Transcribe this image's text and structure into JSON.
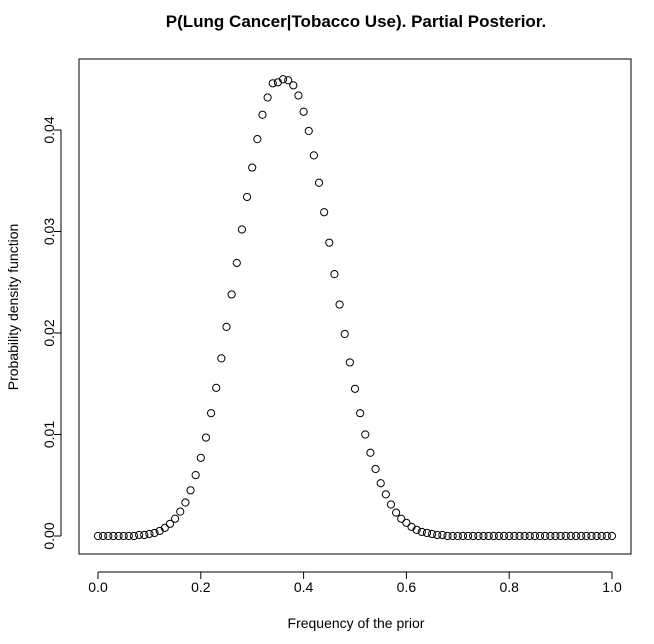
{
  "chart_data": {
    "type": "scatter",
    "title": "P(Lung Cancer|Tobacco Use). Partial Posterior.",
    "xlabel": "Frequency of the prior",
    "ylabel": "Probability density function",
    "xlim": [
      0.0,
      1.0
    ],
    "ylim": [
      0.0,
      0.045
    ],
    "x_ticks": [
      "0.0",
      "0.2",
      "0.4",
      "0.6",
      "0.8",
      "1.0"
    ],
    "y_ticks": [
      "0.00",
      "0.01",
      "0.02",
      "0.03",
      "0.04"
    ],
    "grid": false,
    "legend": "none",
    "marker": "open-circle",
    "series": [
      {
        "x": [
          0.0,
          0.01,
          0.02,
          0.03,
          0.04,
          0.05,
          0.06,
          0.07,
          0.08,
          0.09,
          0.1,
          0.11,
          0.12,
          0.13,
          0.14,
          0.15,
          0.16,
          0.17,
          0.18,
          0.19,
          0.2,
          0.21,
          0.22,
          0.23,
          0.24,
          0.25,
          0.26,
          0.27,
          0.28,
          0.29,
          0.3,
          0.31,
          0.32,
          0.33,
          0.34,
          0.35,
          0.36,
          0.37,
          0.38,
          0.39,
          0.4,
          0.41,
          0.42,
          0.43,
          0.44,
          0.45,
          0.46,
          0.47,
          0.48,
          0.49,
          0.5,
          0.51,
          0.52,
          0.53,
          0.54,
          0.55,
          0.56,
          0.57,
          0.58,
          0.59,
          0.6,
          0.61,
          0.62,
          0.63,
          0.64,
          0.65,
          0.66,
          0.67,
          0.68,
          0.69,
          0.7,
          0.71,
          0.72,
          0.73,
          0.74,
          0.75,
          0.76,
          0.77,
          0.78,
          0.79,
          0.8,
          0.81,
          0.82,
          0.83,
          0.84,
          0.85,
          0.86,
          0.87,
          0.88,
          0.89,
          0.9,
          0.91,
          0.92,
          0.93,
          0.94,
          0.95,
          0.96,
          0.97,
          0.98,
          0.99,
          1.0
        ],
        "y": [
          0.0,
          0.0,
          0.0,
          0.0,
          0.0,
          0.0,
          0.0,
          0.0,
          0.0001,
          0.0001,
          0.0002,
          0.0003,
          0.0005,
          0.0008,
          0.0012,
          0.0017,
          0.0024,
          0.0033,
          0.0045,
          0.006,
          0.0077,
          0.0097,
          0.0121,
          0.0146,
          0.0175,
          0.0206,
          0.0238,
          0.0269,
          0.0302,
          0.0334,
          0.0363,
          0.0391,
          0.0415,
          0.0432,
          0.0446,
          0.0447,
          0.045,
          0.0449,
          0.0444,
          0.0434,
          0.0418,
          0.0399,
          0.0375,
          0.0348,
          0.0319,
          0.0289,
          0.0258,
          0.0228,
          0.0199,
          0.0171,
          0.0145,
          0.0121,
          0.01,
          0.0082,
          0.0066,
          0.0052,
          0.0041,
          0.0031,
          0.0023,
          0.0017,
          0.0013,
          0.0009,
          0.0006,
          0.0004,
          0.0003,
          0.0002,
          0.0001,
          0.0001,
          0.0,
          0.0,
          0.0,
          0.0,
          0.0,
          0.0,
          0.0,
          0.0,
          0.0,
          0.0,
          0.0,
          0.0,
          0.0,
          0.0,
          0.0,
          0.0,
          0.0,
          0.0,
          0.0,
          0.0,
          0.0,
          0.0,
          0.0,
          0.0,
          0.0,
          0.0,
          0.0,
          0.0,
          0.0,
          0.0,
          0.0,
          0.0,
          0.0
        ]
      }
    ]
  }
}
